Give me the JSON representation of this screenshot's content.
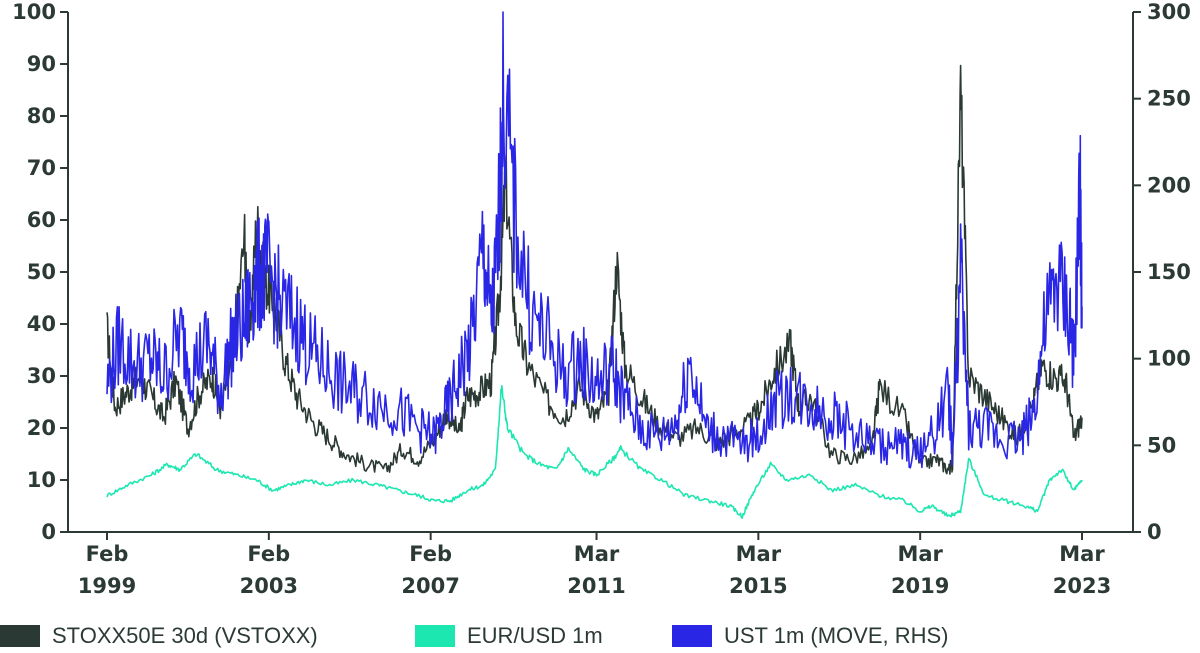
{
  "chart_data": {
    "type": "line",
    "title": "",
    "y_left": {
      "min": 0,
      "max": 100,
      "ticks": [
        "0",
        "10",
        "20",
        "30",
        "40",
        "50",
        "60",
        "70",
        "80",
        "90",
        "100"
      ]
    },
    "y_right": {
      "min": 0,
      "max": 300,
      "ticks": [
        "0",
        "50",
        "100",
        "150",
        "200",
        "250",
        "300"
      ]
    },
    "x_range": [
      1999.1,
      2023.2
    ],
    "x_ticks": [
      {
        "x": 1999.1,
        "month": "Feb",
        "year": "1999"
      },
      {
        "x": 2003.1,
        "month": "Feb",
        "year": "2003"
      },
      {
        "x": 2007.1,
        "month": "Feb",
        "year": "2007"
      },
      {
        "x": 2011.2,
        "month": "Mar",
        "year": "2011"
      },
      {
        "x": 2015.2,
        "month": "Mar",
        "year": "2015"
      },
      {
        "x": 2019.2,
        "month": "Mar",
        "year": "2019"
      },
      {
        "x": 2023.2,
        "month": "Mar",
        "year": "2023"
      }
    ],
    "series": [
      {
        "name": "STOXX50E 30d (VSTOXX)",
        "axis": "left",
        "color": "#2b3934",
        "x": [
          1999.1,
          1999.3,
          1999.6,
          1999.9,
          2000.2,
          2000.5,
          2000.8,
          2001.1,
          2001.4,
          2001.7,
          2001.9,
          2002.2,
          2002.5,
          2002.6,
          2002.8,
          2003.0,
          2003.2,
          2003.5,
          2003.8,
          2004.2,
          2004.6,
          2005.0,
          2005.5,
          2006.0,
          2006.4,
          2006.8,
          2007.2,
          2007.5,
          2007.8,
          2008.0,
          2008.3,
          2008.6,
          2008.8,
          2008.95,
          2009.2,
          2009.5,
          2010.0,
          2010.4,
          2010.8,
          2011.2,
          2011.5,
          2011.7,
          2011.9,
          2012.3,
          2012.7,
          2013.2,
          2013.7,
          2014.2,
          2014.6,
          2015.0,
          2015.3,
          2015.6,
          2016.0,
          2016.2,
          2016.5,
          2017.0,
          2017.5,
          2018.0,
          2018.2,
          2018.8,
          2019.2,
          2019.6,
          2019.9,
          2020.0,
          2020.2,
          2020.4,
          2020.8,
          2021.2,
          2021.6,
          2022.0,
          2022.2,
          2022.5,
          2022.8,
          2023.0,
          2023.2
        ],
        "values": [
          39,
          24,
          27,
          30,
          26,
          22,
          29,
          20,
          27,
          30,
          24,
          33,
          57,
          35,
          60,
          48,
          45,
          33,
          26,
          21,
          18,
          15,
          13,
          12,
          16,
          14,
          18,
          23,
          19,
          26,
          27,
          29,
          45,
          68,
          40,
          32,
          25,
          22,
          28,
          22,
          27,
          52,
          32,
          26,
          21,
          18,
          20,
          17,
          19,
          21,
          25,
          31,
          36,
          24,
          26,
          15,
          14,
          16,
          28,
          22,
          13,
          14,
          12,
          13,
          85,
          30,
          26,
          22,
          18,
          25,
          32,
          30,
          29,
          18,
          22
        ]
      },
      {
        "name": "EUR/USD 1m",
        "axis": "left",
        "color": "#1de7b0",
        "x": [
          1999.1,
          1999.6,
          2000.2,
          2000.6,
          2000.9,
          2001.3,
          2001.8,
          2002.3,
          2002.8,
          2003.2,
          2003.6,
          2004.0,
          2004.6,
          2005.2,
          2005.8,
          2006.3,
          2006.8,
          2007.2,
          2007.6,
          2008.0,
          2008.4,
          2008.7,
          2008.85,
          2009.0,
          2009.4,
          2009.8,
          2010.2,
          2010.5,
          2010.9,
          2011.2,
          2011.6,
          2011.8,
          2012.3,
          2012.8,
          2013.4,
          2014.0,
          2014.5,
          2014.8,
          2015.1,
          2015.5,
          2015.9,
          2016.5,
          2017.0,
          2017.6,
          2018.2,
          2018.8,
          2019.2,
          2019.5,
          2019.9,
          2020.2,
          2020.4,
          2020.8,
          2021.3,
          2021.8,
          2022.1,
          2022.4,
          2022.7,
          2023.0,
          2023.2
        ],
        "values": [
          7,
          9,
          11,
          13,
          12,
          15,
          12,
          11,
          10,
          8,
          9,
          10,
          9,
          10,
          9,
          8,
          7,
          6,
          6,
          8,
          9,
          12,
          28,
          20,
          15,
          13,
          12,
          16,
          12,
          11,
          14,
          16,
          12,
          10,
          7,
          6,
          5,
          3,
          8,
          13,
          10,
          11,
          8,
          9,
          7,
          6,
          4,
          5,
          3,
          4,
          14,
          7,
          6,
          5,
          4,
          10,
          12,
          8,
          10
        ]
      },
      {
        "name": "UST 1m (MOVE, RHS)",
        "axis": "right",
        "color": "#2a26e6",
        "x": [
          1999.1,
          1999.4,
          1999.8,
          2000.2,
          2000.5,
          2000.9,
          2001.2,
          2001.6,
          2001.9,
          2002.2,
          2002.5,
          2002.7,
          2002.9,
          2003.1,
          2003.4,
          2003.8,
          2004.1,
          2004.5,
          2004.9,
          2005.3,
          2005.8,
          2006.3,
          2006.8,
          2007.2,
          2007.5,
          2007.8,
          2008.1,
          2008.4,
          2008.6,
          2008.75,
          2008.9,
          2009.2,
          2009.6,
          2010.0,
          2010.4,
          2010.8,
          2011.2,
          2011.6,
          2011.9,
          2012.3,
          2012.8,
          2013.2,
          2013.5,
          2013.9,
          2014.3,
          2014.8,
          2015.2,
          2015.6,
          2016.0,
          2016.4,
          2016.8,
          2017.2,
          2017.7,
          2018.2,
          2018.7,
          2019.1,
          2019.5,
          2019.9,
          2020.0,
          2020.2,
          2020.4,
          2020.8,
          2021.2,
          2021.7,
          2022.0,
          2022.3,
          2022.6,
          2022.9,
          2023.0,
          2023.15,
          2023.2
        ],
        "values": [
          85,
          110,
          95,
          100,
          90,
          115,
          95,
          110,
          80,
          110,
          120,
          140,
          150,
          150,
          130,
          120,
          105,
          95,
          85,
          80,
          75,
          70,
          60,
          55,
          70,
          90,
          110,
          165,
          120,
          160,
          255,
          180,
          125,
          110,
          90,
          100,
          85,
          95,
          75,
          60,
          55,
          65,
          100,
          60,
          55,
          50,
          55,
          75,
          80,
          75,
          70,
          65,
          55,
          50,
          50,
          45,
          55,
          80,
          45,
          150,
          60,
          60,
          55,
          55,
          70,
          120,
          145,
          125,
          95,
          195,
          130
        ]
      }
    ],
    "legend": {
      "position": "bottom",
      "items": [
        "STOXX50E 30d (VSTOXX)",
        "EUR/USD 1m",
        "UST 1m (MOVE, RHS)"
      ]
    }
  }
}
